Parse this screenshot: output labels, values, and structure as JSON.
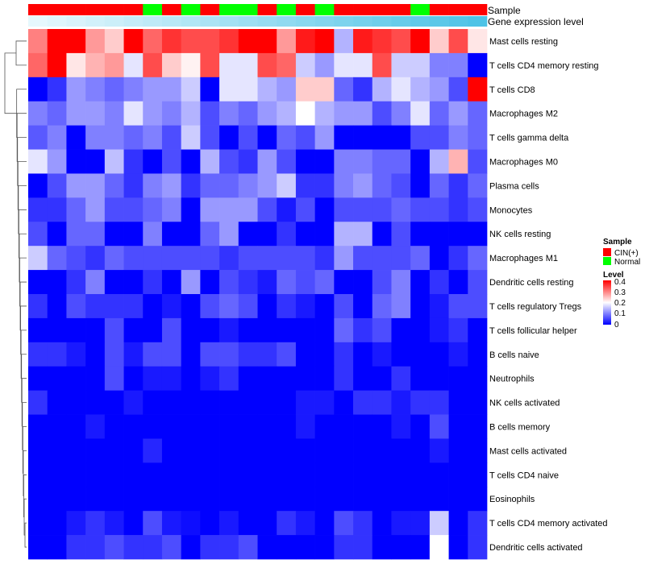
{
  "chart_data": {
    "type": "heatmap",
    "column_annotations": [
      {
        "name": "Sample",
        "values": [
          "CIN(+)",
          "CIN(+)",
          "CIN(+)",
          "CIN(+)",
          "CIN(+)",
          "CIN(+)",
          "Normal",
          "CIN(+)",
          "Normal",
          "CIN(+)",
          "Normal",
          "Normal",
          "CIN(+)",
          "Normal",
          "CIN(+)",
          "Normal",
          "CIN(+)",
          "CIN(+)",
          "CIN(+)",
          "CIN(+)",
          "Normal",
          "CIN(+)",
          "CIN(+)",
          "CIN(+)"
        ]
      },
      {
        "name": "Gene expression level",
        "values": [
          0.02,
          0.04,
          0.06,
          0.08,
          0.1,
          0.12,
          0.14,
          0.16,
          0.18,
          0.2,
          0.22,
          0.24,
          0.26,
          0.28,
          0.3,
          0.32,
          0.34,
          0.36,
          0.38,
          0.4,
          0.42,
          0.44,
          0.46,
          0.48
        ]
      }
    ],
    "rows": [
      "Mast cells resting",
      "T cells CD4 memory resting",
      "T cells CD8",
      "Macrophages M2",
      "T cells gamma delta",
      "Macrophages M0",
      "Plasma cells",
      "Monocytes",
      "NK cells resting",
      "Macrophages M1",
      "Dendritic cells resting",
      "T cells regulatory  Tregs",
      "T cells follicular helper",
      "B cells naive",
      "Neutrophils",
      "NK cells activated",
      "B cells memory",
      "Mast cells activated",
      "T cells CD4 naive",
      "Eosinophils",
      "T cells CD4 memory activated",
      "Dendritic cells activated"
    ],
    "matrix": [
      [
        0.3,
        0.4,
        0.4,
        0.28,
        0.24,
        0.4,
        0.32,
        0.36,
        0.34,
        0.34,
        0.36,
        0.4,
        0.4,
        0.28,
        0.38,
        0.4,
        0.14,
        0.38,
        0.36,
        0.34,
        0.4,
        0.24,
        0.34,
        0.22
      ],
      [
        0.32,
        0.4,
        0.22,
        0.26,
        0.28,
        0.18,
        0.34,
        0.24,
        0.21,
        0.34,
        0.18,
        0.18,
        0.34,
        0.32,
        0.16,
        0.12,
        0.18,
        0.18,
        0.34,
        0.16,
        0.16,
        0.1,
        0.1,
        0.0
      ],
      [
        0.0,
        0.04,
        0.12,
        0.1,
        0.08,
        0.1,
        0.12,
        0.12,
        0.16,
        0.0,
        0.18,
        0.18,
        0.14,
        0.12,
        0.24,
        0.24,
        0.08,
        0.04,
        0.14,
        0.18,
        0.14,
        0.12,
        0.06,
        0.4
      ],
      [
        0.1,
        0.08,
        0.12,
        0.12,
        0.1,
        0.18,
        0.12,
        0.1,
        0.14,
        0.06,
        0.1,
        0.08,
        0.12,
        0.14,
        0.2,
        0.14,
        0.12,
        0.12,
        0.06,
        0.1,
        0.18,
        0.08,
        0.12,
        0.08
      ],
      [
        0.07,
        0.1,
        0.0,
        0.1,
        0.1,
        0.08,
        0.1,
        0.06,
        0.16,
        0.06,
        0.0,
        0.06,
        0.0,
        0.08,
        0.06,
        0.12,
        0.0,
        0.0,
        0.0,
        0.0,
        0.06,
        0.06,
        0.1,
        0.08
      ],
      [
        0.18,
        0.12,
        0.0,
        0.0,
        0.15,
        0.04,
        0.0,
        0.06,
        0.0,
        0.14,
        0.06,
        0.04,
        0.12,
        0.06,
        0.0,
        0.0,
        0.1,
        0.1,
        0.08,
        0.08,
        0.0,
        0.14,
        0.26,
        0.06
      ],
      [
        0.0,
        0.06,
        0.12,
        0.12,
        0.08,
        0.04,
        0.1,
        0.12,
        0.04,
        0.08,
        0.08,
        0.1,
        0.12,
        0.16,
        0.04,
        0.04,
        0.1,
        0.12,
        0.08,
        0.06,
        0.0,
        0.08,
        0.04,
        0.08
      ],
      [
        0.04,
        0.04,
        0.08,
        0.12,
        0.06,
        0.06,
        0.08,
        0.1,
        0.0,
        0.12,
        0.12,
        0.12,
        0.06,
        0.02,
        0.06,
        0.0,
        0.06,
        0.06,
        0.06,
        0.08,
        0.06,
        0.06,
        0.04,
        0.06
      ],
      [
        0.06,
        0.0,
        0.08,
        0.08,
        0.0,
        0.0,
        0.1,
        0.0,
        0.0,
        0.08,
        0.12,
        0.0,
        0.0,
        0.04,
        0.0,
        0.0,
        0.14,
        0.14,
        0.0,
        0.06,
        0.0,
        0.0,
        0.0,
        0.0
      ],
      [
        0.16,
        0.08,
        0.06,
        0.04,
        0.08,
        0.06,
        0.06,
        0.06,
        0.06,
        0.06,
        0.04,
        0.06,
        0.06,
        0.06,
        0.06,
        0.04,
        0.12,
        0.06,
        0.06,
        0.06,
        0.08,
        0.0,
        0.04,
        0.08
      ],
      [
        0.0,
        0.0,
        0.04,
        0.1,
        0.0,
        0.0,
        0.04,
        0.0,
        0.12,
        0.0,
        0.06,
        0.04,
        0.02,
        0.08,
        0.06,
        0.08,
        0.0,
        0.0,
        0.06,
        0.1,
        0.0,
        0.04,
        0.0,
        0.06
      ],
      [
        0.04,
        0.0,
        0.06,
        0.04,
        0.04,
        0.04,
        0.0,
        0.02,
        0.0,
        0.06,
        0.08,
        0.06,
        0.0,
        0.04,
        0.02,
        0.0,
        0.06,
        0.0,
        0.08,
        0.1,
        0.0,
        0.02,
        0.06,
        0.06
      ],
      [
        0.0,
        0.0,
        0.0,
        0.0,
        0.06,
        0.0,
        0.0,
        0.06,
        0.0,
        0.0,
        0.02,
        0.0,
        0.0,
        0.0,
        0.0,
        0.0,
        0.08,
        0.04,
        0.06,
        0.0,
        0.0,
        0.02,
        0.04,
        0.0
      ],
      [
        0.04,
        0.04,
        0.02,
        0.0,
        0.06,
        0.02,
        0.06,
        0.06,
        0.0,
        0.06,
        0.06,
        0.04,
        0.04,
        0.06,
        0.0,
        0.0,
        0.04,
        0.0,
        0.02,
        0.0,
        0.0,
        0.0,
        0.02,
        0.0
      ],
      [
        0.0,
        0.0,
        0.0,
        0.0,
        0.06,
        0.0,
        0.02,
        0.02,
        0.0,
        0.02,
        0.04,
        0.0,
        0.0,
        0.0,
        0.0,
        0.0,
        0.04,
        0.0,
        0.0,
        0.04,
        0.0,
        0.0,
        0.0,
        0.0
      ],
      [
        0.04,
        0.0,
        0.0,
        0.0,
        0.0,
        0.02,
        0.0,
        0.0,
        0.0,
        0.0,
        0.0,
        0.0,
        0.0,
        0.0,
        0.02,
        0.02,
        0.0,
        0.04,
        0.04,
        0.02,
        0.04,
        0.04,
        0.0,
        0.0
      ],
      [
        0.0,
        0.0,
        0.0,
        0.02,
        0.0,
        0.0,
        0.0,
        0.0,
        0.0,
        0.0,
        0.0,
        0.0,
        0.0,
        0.0,
        0.02,
        0.0,
        0.0,
        0.0,
        0.0,
        0.02,
        0.0,
        0.06,
        0.0,
        0.0
      ],
      [
        0.0,
        0.0,
        0.0,
        0.0,
        0.0,
        0.0,
        0.03,
        0.0,
        0.0,
        0.0,
        0.0,
        0.0,
        0.0,
        0.0,
        0.0,
        0.0,
        0.0,
        0.0,
        0.0,
        0.0,
        0.0,
        0.02,
        0.0,
        0.0
      ],
      [
        0.0,
        0.0,
        0.0,
        0.0,
        0.0,
        0.0,
        0.0,
        0.0,
        0.0,
        0.0,
        0.0,
        0.0,
        0.0,
        0.0,
        0.0,
        0.0,
        0.0,
        0.0,
        0.0,
        0.0,
        0.0,
        0.0,
        0.0,
        0.0
      ],
      [
        0.0,
        0.0,
        0.0,
        0.0,
        0.0,
        0.0,
        0.0,
        0.0,
        0.0,
        0.0,
        0.0,
        0.0,
        0.0,
        0.0,
        0.0,
        0.0,
        0.0,
        0.0,
        0.0,
        0.0,
        0.0,
        0.0,
        0.0,
        0.0
      ],
      [
        0.0,
        0.0,
        0.02,
        0.04,
        0.02,
        0.0,
        0.06,
        0.02,
        0.01,
        0.0,
        0.02,
        0.0,
        0.0,
        0.04,
        0.02,
        0.0,
        0.06,
        0.04,
        0.0,
        0.02,
        0.02,
        0.16,
        0.0,
        0.04
      ],
      [
        0.0,
        0.0,
        0.04,
        0.04,
        0.06,
        0.04,
        0.04,
        0.06,
        0.0,
        0.04,
        0.04,
        0.06,
        0.0,
        0.0,
        0.0,
        0.0,
        0.04,
        0.04,
        0.0,
        0.0,
        0.0,
        0.2,
        0.0,
        0.04
      ]
    ],
    "color_scale": {
      "min": 0,
      "mid": 0.2,
      "max": 0.4,
      "low_color": "#0000ff",
      "mid_color": "#ffffff",
      "high_color": "#ff0000"
    },
    "legends": {
      "sample": {
        "title": "Sample",
        "entries": [
          {
            "label": "CIN(+)",
            "color": "#ff0000"
          },
          {
            "label": "Normal",
            "color": "#00ff00"
          }
        ]
      },
      "level": {
        "title": "Level",
        "ticks": [
          "0.4",
          "0.3",
          "0.2",
          "0.1",
          "0"
        ]
      }
    },
    "annotation_colors": {
      "gene_low": "#e6f8fd",
      "gene_high": "#4ec3e6"
    },
    "dendrogram": "rows"
  }
}
